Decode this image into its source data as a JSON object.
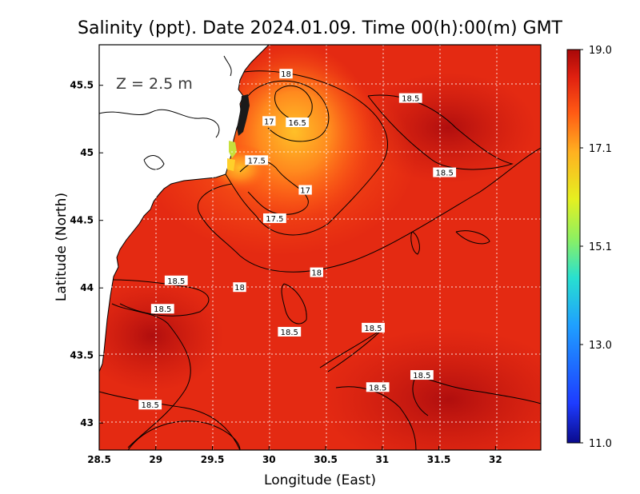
{
  "chart_data": {
    "type": "heatmap",
    "title": "Salinity (ppt). Date 2024.01.09. Time 00(h):00(m) GMT",
    "xlabel": "Longitude (East)",
    "ylabel": "Latitude (North)",
    "annotation": "Z = 2.5 m",
    "xlim": [
      28.5,
      32.4
    ],
    "ylim": [
      42.8,
      45.8
    ],
    "x_ticks": [
      "28.5",
      "29",
      "29.5",
      "30",
      "30.5",
      "31",
      "31.5",
      "32"
    ],
    "y_ticks": [
      "43",
      "43.5",
      "44",
      "44.5",
      "45",
      "45.5"
    ],
    "colorbar": {
      "min": 11.0,
      "max": 19.0,
      "tick_labels": [
        "19.0",
        "17.1",
        "15.1",
        "13.0",
        "11.0"
      ],
      "colors": [
        "#0a0a8c",
        "#1e3cff",
        "#1fa0ff",
        "#28e0d0",
        "#8ef060",
        "#e6f020",
        "#ffb020",
        "#ff5a14",
        "#e02010",
        "#a80808"
      ]
    },
    "grid": true,
    "contour_labels": [
      {
        "text": "18",
        "lon": 30.15,
        "lat": 45.58
      },
      {
        "text": "17",
        "lon": 30.0,
        "lat": 45.23
      },
      {
        "text": "16.5",
        "lon": 30.25,
        "lat": 45.22
      },
      {
        "text": "18.5",
        "lon": 31.25,
        "lat": 45.4
      },
      {
        "text": "17.5",
        "lon": 29.89,
        "lat": 44.94
      },
      {
        "text": "18.5",
        "lon": 31.55,
        "lat": 44.85
      },
      {
        "text": "17",
        "lon": 30.32,
        "lat": 44.72
      },
      {
        "text": "17.5",
        "lon": 30.05,
        "lat": 44.51
      },
      {
        "text": "18.5",
        "lon": 29.18,
        "lat": 44.05
      },
      {
        "text": "18",
        "lon": 29.74,
        "lat": 44.0
      },
      {
        "text": "18",
        "lon": 30.42,
        "lat": 44.11
      },
      {
        "text": "18.5",
        "lon": 29.06,
        "lat": 43.84
      },
      {
        "text": "18.5",
        "lon": 30.18,
        "lat": 43.67
      },
      {
        "text": "18.5",
        "lon": 30.92,
        "lat": 43.7
      },
      {
        "text": "18.5",
        "lon": 31.35,
        "lat": 43.35
      },
      {
        "text": "18.5",
        "lon": 30.96,
        "lat": 43.26
      },
      {
        "text": "18.5",
        "lon": 28.95,
        "lat": 43.13
      }
    ]
  }
}
